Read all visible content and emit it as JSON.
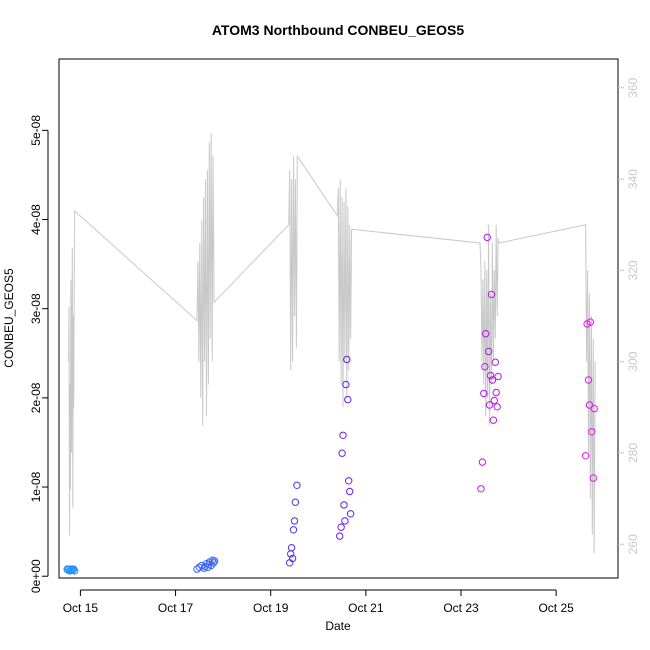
{
  "chart_data": {
    "type": "scatter",
    "title": "ATOM3 Northbound CONBEU_GEOS5",
    "xlabel": "Date",
    "ylabel": "CONBEU_GEOS5",
    "xlim": [
      14.55,
      26.3
    ],
    "ylim": [
      -2e-10,
      5.8e-08
    ],
    "x_ticks": [
      15,
      17,
      19,
      21,
      23,
      25
    ],
    "x_tick_labels": [
      "Oct 15",
      "Oct 17",
      "Oct 19",
      "Oct 21",
      "Oct 23",
      "Oct 25"
    ],
    "y_ticks": [
      0,
      1e-08,
      2e-08,
      3e-08,
      4e-08,
      5e-08
    ],
    "y_tick_labels": [
      "0e+00",
      "1e-08",
      "2e-08",
      "3e-08",
      "4e-08",
      "5e-08"
    ],
    "y2lim": [
      252.6,
      366.3
    ],
    "y2_ticks": [
      260,
      280,
      300,
      320,
      340,
      360
    ],
    "y2_tick_labels": [
      "260",
      "280",
      "300",
      "320",
      "340",
      "360"
    ],
    "grid": false,
    "colors": {
      "altitude_line": "#c8c8c8",
      "right_axis": "#c8c8c8",
      "point_scale_low": "#1e9bff",
      "point_scale_mid": "#5a1ee6",
      "point_scale_high": "#ff14f0"
    },
    "series": [
      {
        "type": "scatter",
        "y_axis": "left",
        "x": [
          14.72,
          14.74,
          14.76,
          14.78,
          14.8,
          14.82,
          14.84,
          14.86,
          14.88,
          17.45,
          17.5,
          17.55,
          17.6,
          17.62,
          17.65,
          17.68,
          17.7,
          17.72,
          17.75,
          17.78,
          17.8,
          17.82,
          19.4,
          19.42,
          19.44,
          19.46,
          19.48,
          19.5,
          19.52,
          19.55,
          20.45,
          20.48,
          20.5,
          20.52,
          20.54,
          20.56,
          20.58,
          20.6,
          20.62,
          20.64,
          20.66,
          20.68,
          23.42,
          23.45,
          23.48,
          23.5,
          23.52,
          23.55,
          23.58,
          23.6,
          23.62,
          23.64,
          23.66,
          23.68,
          23.7,
          23.72,
          23.74,
          23.76,
          23.78,
          25.62,
          25.65,
          25.68,
          25.7,
          25.72,
          25.75,
          25.78,
          25.8
        ],
        "y": [
          8e-10,
          7e-10,
          8e-10,
          6e-10,
          7e-10,
          8e-10,
          7e-10,
          8e-10,
          6e-10,
          8e-10,
          1e-09,
          1.2e-09,
          9e-10,
          1.1e-09,
          1.4e-09,
          1e-09,
          1.3e-09,
          1.6e-09,
          1.2e-09,
          1.8e-09,
          1.5e-09,
          1.7e-09,
          1.5e-09,
          2.5e-09,
          3.2e-09,
          2e-09,
          5.2e-09,
          6.2e-09,
          8.3e-09,
          1.02e-08,
          4.5e-09,
          5.5e-09,
          1.38e-08,
          1.58e-08,
          8e-09,
          6.2e-09,
          2.15e-08,
          2.43e-08,
          1.98e-08,
          1.07e-08,
          9.5e-09,
          7e-09,
          9.8e-09,
          1.28e-08,
          2.05e-08,
          2.35e-08,
          2.72e-08,
          3.8e-08,
          2.52e-08,
          1.92e-08,
          2.25e-08,
          3.16e-08,
          2.2e-08,
          1.75e-08,
          1.97e-08,
          2.4e-08,
          2.06e-08,
          1.9e-08,
          2.24e-08,
          1.35e-08,
          2.83e-08,
          2.2e-08,
          1.92e-08,
          2.85e-08,
          1.62e-08,
          1.1e-08,
          1.88e-08
        ],
        "color_values": [
          0.05,
          0.05,
          0.05,
          0.05,
          0.05,
          0.05,
          0.05,
          0.05,
          0.05,
          0.22,
          0.22,
          0.22,
          0.22,
          0.22,
          0.22,
          0.22,
          0.22,
          0.22,
          0.22,
          0.22,
          0.22,
          0.22,
          0.42,
          0.42,
          0.42,
          0.42,
          0.42,
          0.42,
          0.42,
          0.42,
          0.55,
          0.55,
          0.55,
          0.55,
          0.55,
          0.55,
          0.55,
          0.55,
          0.55,
          0.55,
          0.55,
          0.55,
          0.78,
          0.78,
          0.78,
          0.78,
          0.78,
          0.78,
          0.78,
          0.78,
          0.78,
          0.78,
          0.78,
          0.78,
          0.78,
          0.78,
          0.78,
          0.78,
          0.78,
          0.92,
          0.92,
          0.92,
          0.92,
          0.92,
          0.92,
          0.92,
          0.92
        ]
      },
      {
        "type": "line",
        "y_axis": "right",
        "x": [
          14.75,
          14.76,
          14.77,
          14.78,
          14.79,
          14.8,
          14.81,
          14.82,
          14.83,
          14.84,
          14.85,
          14.86,
          14.87,
          14.88,
          17.45,
          17.47,
          17.49,
          17.51,
          17.53,
          17.55,
          17.57,
          17.59,
          17.61,
          17.63,
          17.65,
          17.67,
          17.69,
          17.71,
          17.73,
          17.75,
          17.77,
          17.79,
          17.81,
          19.38,
          19.4,
          19.42,
          19.44,
          19.46,
          19.48,
          19.5,
          19.52,
          19.54,
          19.56,
          20.4,
          20.42,
          20.44,
          20.46,
          20.48,
          20.5,
          20.52,
          20.54,
          20.56,
          20.58,
          20.6,
          20.62,
          20.64,
          20.66,
          20.68,
          20.7,
          23.4,
          23.42,
          23.44,
          23.46,
          23.48,
          23.5,
          23.52,
          23.54,
          23.56,
          23.58,
          23.6,
          23.62,
          23.64,
          23.66,
          23.68,
          23.7,
          23.72,
          23.74,
          23.76,
          23.78,
          23.8,
          25.62,
          25.64,
          25.66,
          25.68,
          25.7,
          25.72,
          25.74,
          25.76,
          25.78,
          25.8,
          25.82
        ],
        "y": [
          300,
          312,
          262,
          295,
          272,
          318,
          280,
          300,
          325,
          268,
          310,
          290,
          315,
          333,
          309,
          322,
          300,
          326,
          292,
          331,
          286,
          336,
          300,
          340,
          288,
          342,
          295,
          348,
          305,
          350,
          300,
          345,
          313,
          330,
          342,
          298,
          340,
          300,
          345,
          310,
          340,
          303,
          345,
          332,
          338,
          300,
          340,
          295,
          336,
          290,
          335,
          300,
          338,
          292,
          334,
          298,
          330,
          305,
          329,
          326,
          320,
          300,
          318,
          295,
          322,
          288,
          320,
          292,
          330,
          286,
          315,
          295,
          326,
          300,
          320,
          305,
          330,
          310,
          327,
          326,
          330,
          300,
          320,
          280,
          315,
          270,
          310,
          262,
          305,
          258,
          300
        ]
      }
    ]
  }
}
